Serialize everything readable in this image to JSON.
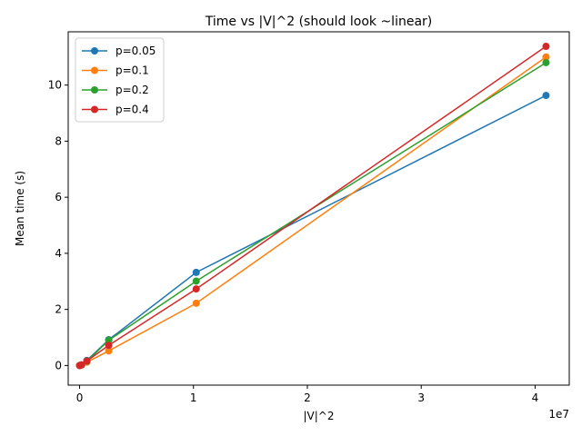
{
  "chart_data": {
    "type": "line",
    "title": "Time vs |V|^2 (should look ~linear)",
    "xlabel": "|V|^2",
    "ylabel": "Mean time (s)",
    "x_offset_label": "1e7",
    "x": [
      10000,
      160000,
      640000,
      2560000,
      10240000,
      40960000
    ],
    "xlim": [
      -1000000,
      43000000
    ],
    "ylim": [
      -0.7,
      11.9
    ],
    "xticks": [
      0,
      10000000,
      20000000,
      30000000,
      40000000
    ],
    "xtick_labels": [
      "0",
      "1",
      "2",
      "3",
      "4"
    ],
    "yticks": [
      0,
      2,
      4,
      6,
      8,
      10
    ],
    "ytick_labels": [
      "0",
      "2",
      "4",
      "6",
      "8",
      "10"
    ],
    "grid": false,
    "legend_position": "top-left",
    "series": [
      {
        "name": "p=0.05",
        "color": "#1f77b4",
        "values": [
          0.0,
          0.02,
          0.18,
          0.92,
          3.32,
          9.63
        ]
      },
      {
        "name": "p=0.1",
        "color": "#ff7f0e",
        "values": [
          0.0,
          0.02,
          0.12,
          0.52,
          2.22,
          11.0
        ]
      },
      {
        "name": "p=0.2",
        "color": "#2ca02c",
        "values": [
          0.0,
          0.02,
          0.15,
          0.9,
          3.01,
          10.8
        ]
      },
      {
        "name": "p=0.4",
        "color": "#d62728",
        "values": [
          0.0,
          0.02,
          0.16,
          0.72,
          2.73,
          11.38
        ]
      }
    ]
  }
}
